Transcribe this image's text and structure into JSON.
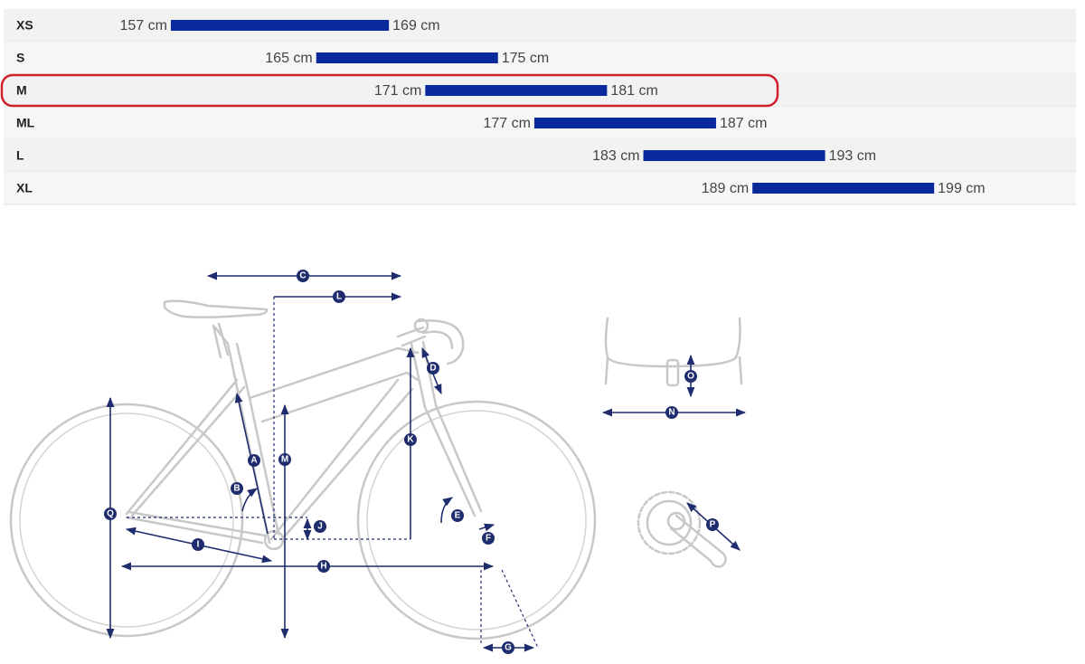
{
  "chart_data": {
    "type": "range-bar",
    "categories": [
      "XS",
      "S",
      "M",
      "ML",
      "L",
      "XL"
    ],
    "values": [
      [
        157,
        169
      ],
      [
        165,
        175
      ],
      [
        171,
        181
      ],
      [
        177,
        187
      ],
      [
        183,
        193
      ],
      [
        189,
        199
      ]
    ],
    "value_labels": [
      [
        "157 cm",
        "169 cm"
      ],
      [
        "165 cm",
        "175 cm"
      ],
      [
        "171 cm",
        "181 cm"
      ],
      [
        "177 cm",
        "187 cm"
      ],
      [
        "183 cm",
        "193 cm"
      ],
      [
        "189 cm",
        "199 cm"
      ]
    ],
    "xlim": [
      147.6,
      207.3
    ],
    "color": "#0a2a9c",
    "highlight": 2,
    "highlight_color": "#d0202a"
  },
  "diagram": {
    "labels": [
      "C",
      "L",
      "D",
      "A",
      "M",
      "K",
      "B",
      "Q",
      "J",
      "E",
      "F",
      "I",
      "H",
      "G",
      "O",
      "N",
      "P"
    ]
  }
}
